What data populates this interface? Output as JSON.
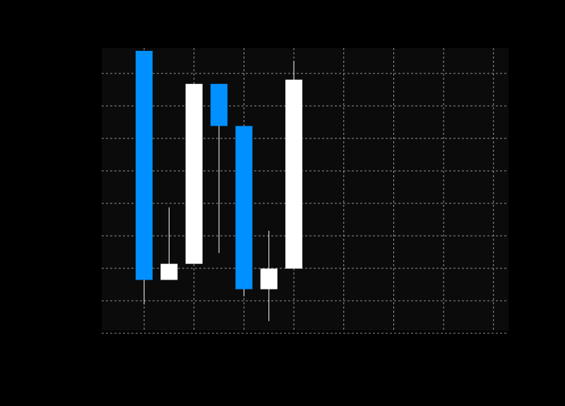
{
  "chart_data": {
    "type": "candlestick",
    "title": "",
    "xlabel": "",
    "ylabel": "",
    "grid": true,
    "xlim": [
      -0.85,
      7.3
    ],
    "ylim": [
      0,
      100
    ],
    "x_gridlines": [
      0,
      1,
      2,
      3,
      4,
      5,
      6,
      7
    ],
    "y_gridlines": [
      -1,
      10.5,
      22,
      33.5,
      45,
      56.5,
      68,
      79.5,
      91
    ],
    "candles": [
      {
        "x": 0,
        "open": 99,
        "close": 17.9,
        "high": 99,
        "low": 9.2
      },
      {
        "x": 0.5,
        "open": 17.9,
        "close": 23.6,
        "high": 43.6,
        "low": 17.9
      },
      {
        "x": 1,
        "open": 23.6,
        "close": 87.3,
        "high": 87.3,
        "low": 23.6
      },
      {
        "x": 1.5,
        "open": 87.3,
        "close": 72.4,
        "high": 87.3,
        "low": 27.4
      },
      {
        "x": 2,
        "open": 72.4,
        "close": 14.6,
        "high": 72.4,
        "low": 12.1
      },
      {
        "x": 2.5,
        "open": 14.6,
        "close": 21.9,
        "high": 35.3,
        "low": 3.3
      },
      {
        "x": 3,
        "open": 21.9,
        "close": 88.8,
        "high": 95.4,
        "low": 21.9
      }
    ],
    "colors": {
      "up": "#ffffff",
      "down": "#0090ff",
      "plot_bg": "#0b0b0b",
      "grid": "#bdbdbd",
      "wick": "#ffffff"
    }
  }
}
